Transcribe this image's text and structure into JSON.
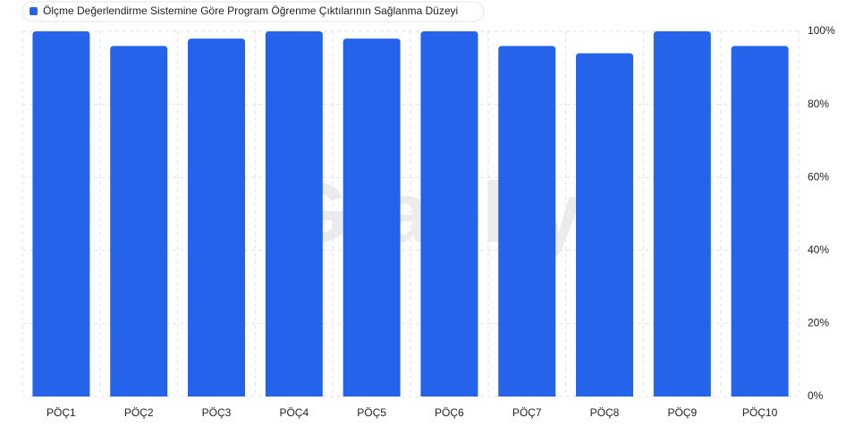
{
  "chart_data": {
    "type": "bar",
    "watermark": "Graphy",
    "series": [
      {
        "name": "Ölçme Değerlendirme Sistemine Göre Program Öğrenme Çıktılarının Sağlanma Düzeyi",
        "color": "#2563eb",
        "values": [
          100,
          96,
          98,
          100,
          98,
          100,
          96,
          94,
          100,
          96
        ]
      }
    ],
    "categories": [
      "PÖÇ1",
      "PÖÇ2",
      "PÖÇ3",
      "PÖÇ4",
      "PÖÇ5",
      "PÖÇ6",
      "PÖÇ7",
      "PÖÇ8",
      "PÖÇ9",
      "PÖÇ10"
    ],
    "ylim": [
      0,
      100
    ],
    "yticks": [
      {
        "value": 0,
        "label": "0%"
      },
      {
        "value": 20,
        "label": "20%"
      },
      {
        "value": 40,
        "label": "40%"
      },
      {
        "value": 60,
        "label": "60%"
      },
      {
        "value": 80,
        "label": "80%"
      },
      {
        "value": 100,
        "label": "100%"
      }
    ],
    "grid": true,
    "legend": "top-left"
  }
}
